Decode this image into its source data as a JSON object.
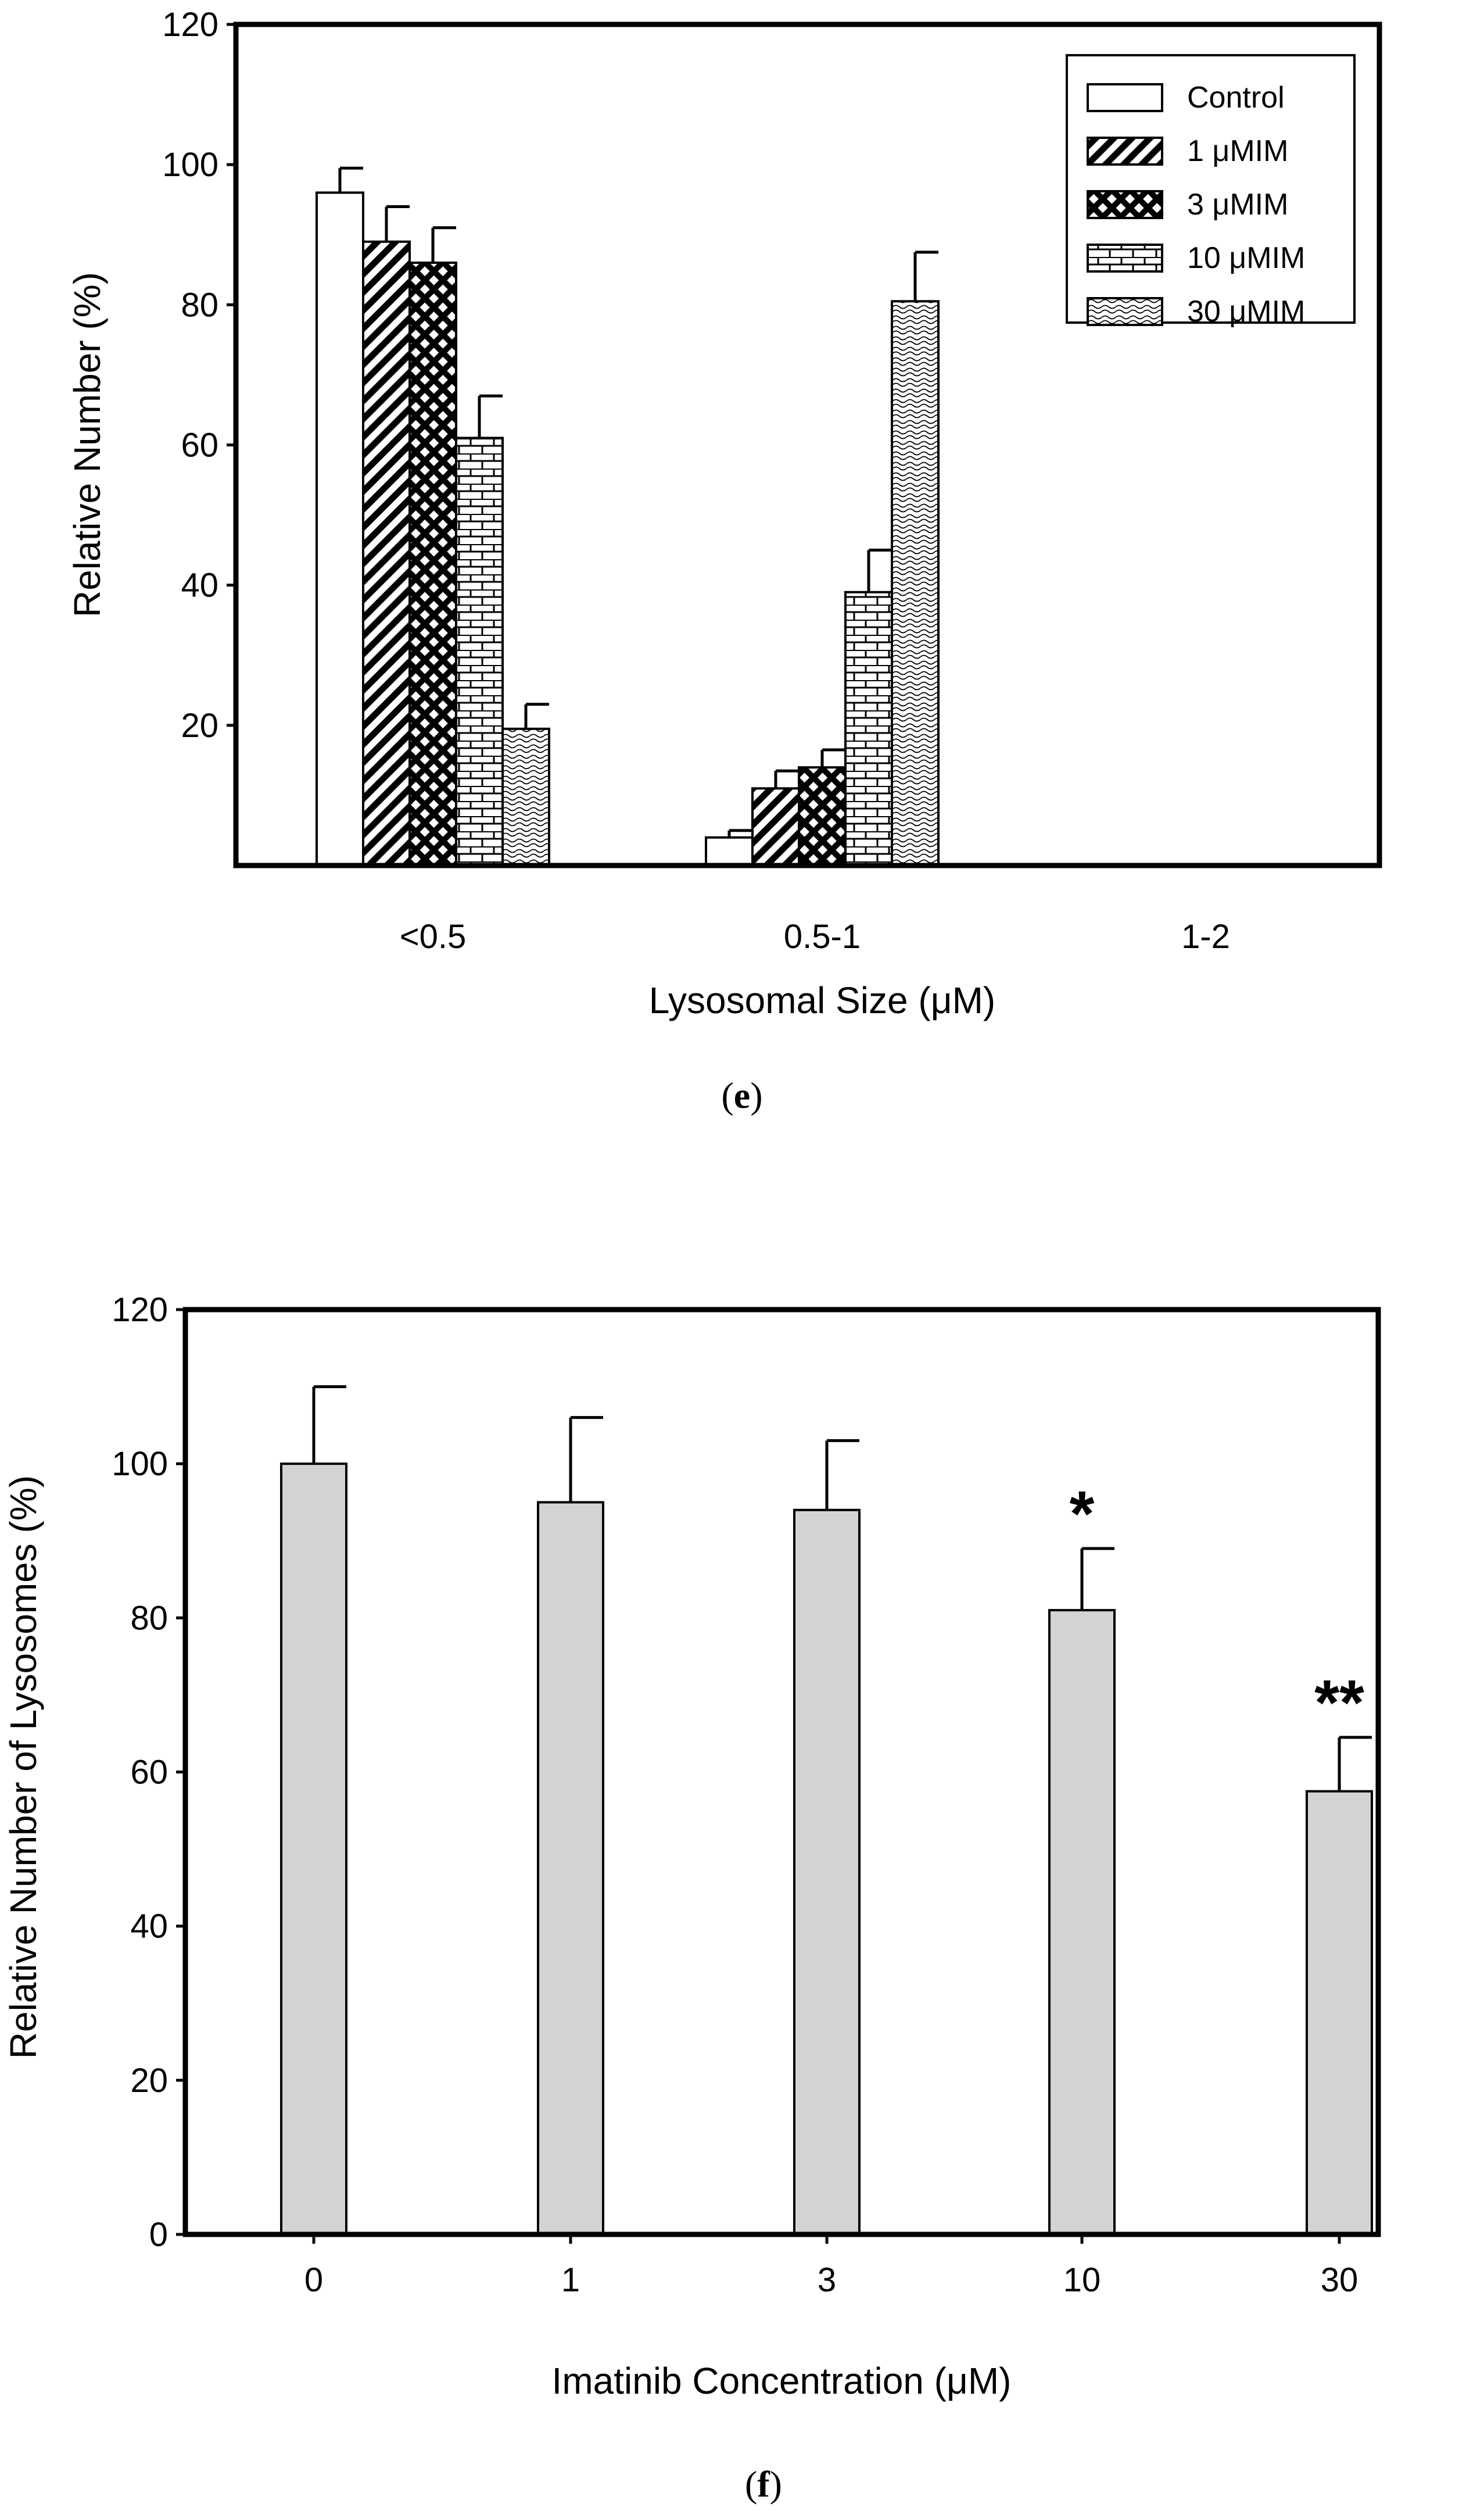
{
  "chart_data": [
    {
      "type": "bar",
      "panel_label": "e",
      "title": "",
      "xlabel": "Lysosomal Size (μM)",
      "ylabel": "Relative Number (%)",
      "ylim": [
        0,
        120
      ],
      "yticks": [
        "20",
        "40",
        "60",
        "80",
        "100",
        "120"
      ],
      "categories": [
        "<0.5",
        "0.5-1",
        "1-2"
      ],
      "legend_position": "top-right",
      "series": [
        {
          "name": "Control",
          "pattern": "none",
          "values": [
            96,
            4,
            0
          ],
          "errors": [
            3.5,
            1,
            0
          ]
        },
        {
          "name": "1 μMIM",
          "pattern": "diagonal",
          "values": [
            89,
            11,
            0
          ],
          "errors": [
            5,
            2.5,
            0
          ]
        },
        {
          "name": "3 μMIM",
          "pattern": "crosshatch",
          "values": [
            86,
            14,
            0
          ],
          "errors": [
            5,
            2.5,
            0
          ]
        },
        {
          "name": "10 μMIM",
          "pattern": "brick",
          "values": [
            61,
            39,
            0
          ],
          "errors": [
            6,
            6,
            0
          ]
        },
        {
          "name": "30 μMIM",
          "pattern": "wave",
          "values": [
            19.5,
            80.5,
            0
          ],
          "errors": [
            3.5,
            7,
            0
          ]
        }
      ]
    },
    {
      "type": "bar",
      "panel_label": "f",
      "title": "",
      "xlabel": "Imatinib Concentration (μM)",
      "ylabel": "Relative Number of Lysosomes (%)",
      "ylim": [
        0,
        120
      ],
      "yticks": [
        "0",
        "20",
        "40",
        "60",
        "80",
        "100",
        "120"
      ],
      "categories": [
        "0",
        "1",
        "3",
        "10",
        "30"
      ],
      "bar_color": "#d3d3d3",
      "values": [
        100,
        95,
        94,
        81,
        57.5
      ],
      "errors": [
        10,
        11,
        9,
        8,
        7
      ],
      "significance": [
        "",
        "",
        "",
        "*",
        "**"
      ]
    }
  ]
}
